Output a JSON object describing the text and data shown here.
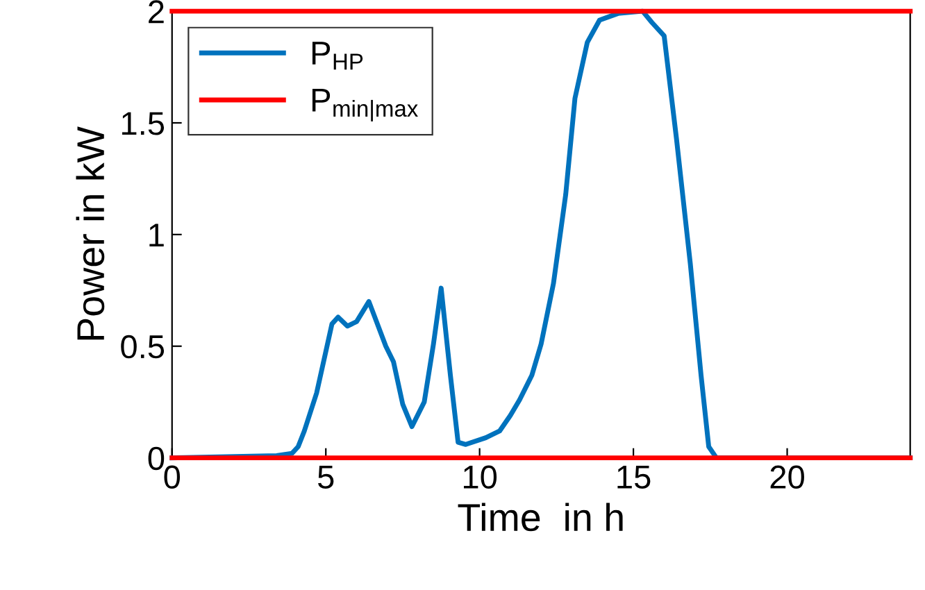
{
  "chart_data": {
    "type": "line",
    "xlabel": "Time  in h",
    "ylabel": "Power in kW",
    "xlim": [
      0,
      24
    ],
    "ylim": [
      0,
      2
    ],
    "xticks": [
      0,
      5,
      10,
      15,
      20
    ],
    "yticks": [
      0,
      0.5,
      1,
      1.5,
      2
    ],
    "grid": false,
    "legend": "top left",
    "line_style": "solid",
    "marker": "none",
    "series": [
      {
        "name": "P$_{HP}$",
        "color": "#0072bd",
        "x": [
          0,
          3.4,
          3.9,
          4.1,
          4.3,
          4.7,
          5.2,
          5.4,
          5.7,
          6.0,
          6.4,
          6.95,
          7.2,
          7.5,
          7.8,
          8.2,
          8.5,
          8.75,
          9.05,
          9.3,
          9.55,
          10.2,
          10.65,
          11.0,
          11.3,
          11.7,
          12.0,
          12.4,
          12.8,
          13.1,
          13.5,
          13.9,
          14.5,
          15.3,
          15.6,
          16.0,
          16.4,
          16.85,
          17.2,
          17.45,
          17.7,
          24
        ],
        "values": [
          0,
          0.01,
          0.02,
          0.05,
          0.12,
          0.29,
          0.6,
          0.63,
          0.59,
          0.61,
          0.7,
          0.5,
          0.43,
          0.24,
          0.14,
          0.25,
          0.51,
          0.76,
          0.37,
          0.07,
          0.06,
          0.09,
          0.12,
          0.19,
          0.26,
          0.37,
          0.51,
          0.78,
          1.18,
          1.61,
          1.86,
          1.96,
          1.99,
          2.0,
          1.95,
          1.89,
          1.43,
          0.87,
          0.37,
          0.05,
          0,
          0
        ]
      },
      {
        "name": "P$_{min|max}$",
        "color": "#ff0000",
        "x": [
          0,
          24
        ],
        "values": [
          2,
          2
        ]
      },
      {
        "color": "#ff0000",
        "x": [
          0,
          24
        ],
        "values": [
          0,
          0
        ]
      }
    ]
  }
}
